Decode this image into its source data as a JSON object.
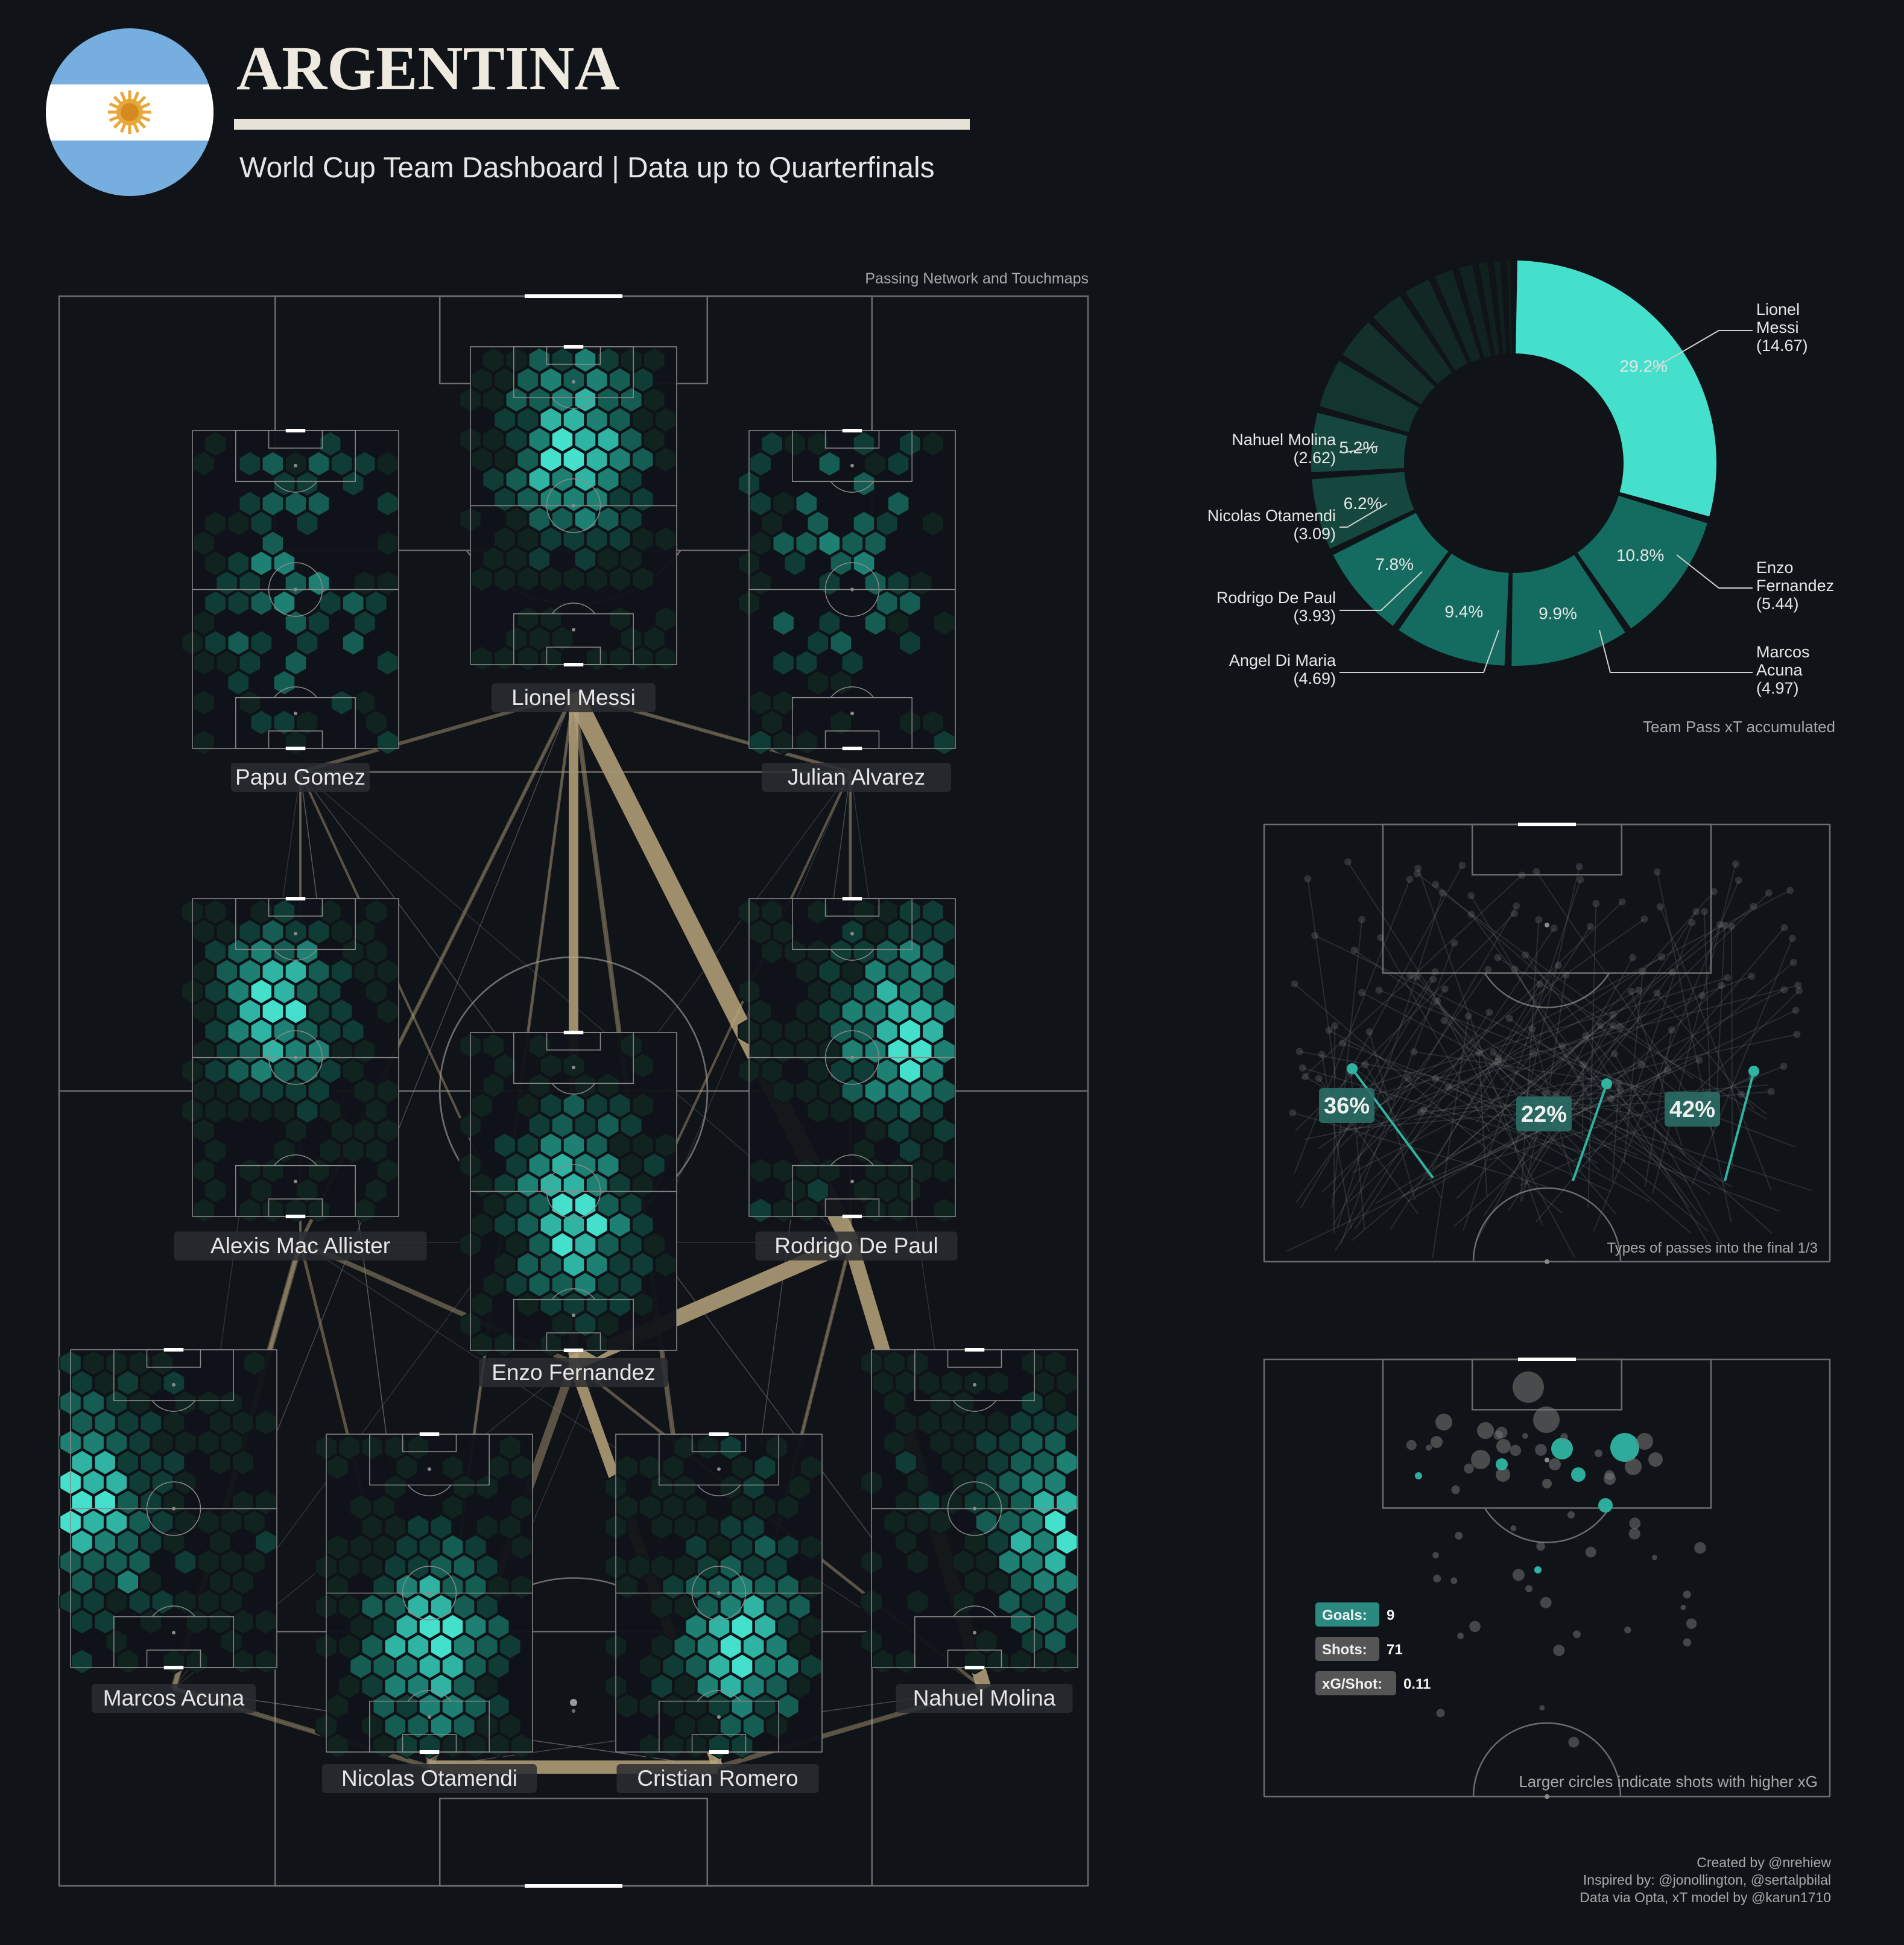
{
  "header": {
    "title": "ARGENTINA",
    "subtitle": "World Cup Team Dashboard | Data up to Quarterfinals",
    "flag_icon": "argentina-flag-icon"
  },
  "colors": {
    "background": "#101318",
    "teal": "#45e0cc",
    "teal_dark": "#146b5f",
    "teal_darker": "#0f3f38",
    "pass_line": "#b9a57a",
    "pitch_line": "#6c6c6c",
    "flag_blue": "#76aee0",
    "sun": "#e7a73b"
  },
  "network": {
    "caption": "Passing Network and Touchmaps",
    "players": [
      {
        "name": "Lionel Messi"
      },
      {
        "name": "Papu Gomez"
      },
      {
        "name": "Julian Alvarez"
      },
      {
        "name": "Alexis Mac Allister"
      },
      {
        "name": "Rodrigo De Paul"
      },
      {
        "name": "Enzo Fernandez"
      },
      {
        "name": "Marcos Acuna"
      },
      {
        "name": "Nahuel Molina"
      },
      {
        "name": "Nicolas Otamendi"
      },
      {
        "name": "Cristian Romero"
      }
    ]
  },
  "chart_data": [
    {
      "type": "pie",
      "caption": "Team Pass xT accumulated",
      "slices": [
        {
          "player": "Lionel Messi",
          "value": 14.67,
          "pct": "29.2%",
          "label": [
            "Lionel",
            "Messi",
            "(14.67)"
          ]
        },
        {
          "player": "Enzo Fernandez",
          "value": 5.44,
          "pct": "10.8%",
          "label": [
            "Enzo",
            "Fernandez",
            "(5.44)"
          ]
        },
        {
          "player": "Marcos Acuna",
          "value": 4.97,
          "pct": "9.9%",
          "label": [
            "Marcos",
            "Acuna",
            "(4.97)"
          ]
        },
        {
          "player": "Angel Di Maria",
          "value": 4.69,
          "pct": "9.4%",
          "label": [
            "Angel Di Maria",
            "(4.69)"
          ]
        },
        {
          "player": "Rodrigo De Paul",
          "value": 3.93,
          "pct": "7.8%",
          "label": [
            "Rodrigo De Paul",
            "(3.93)"
          ]
        },
        {
          "player": "Nicolas Otamendi",
          "value": 3.09,
          "pct": "6.2%",
          "label": [
            "Nicolas Otamendi",
            "(3.09)"
          ]
        },
        {
          "player": "Nahuel Molina",
          "value": 2.62,
          "pct": "5.2%",
          "label": [
            "Nahuel Molina",
            "(2.62)"
          ]
        },
        {
          "value": 2.2
        },
        {
          "value": 1.9
        },
        {
          "value": 1.6
        },
        {
          "value": 1.3
        },
        {
          "value": 1.0
        },
        {
          "value": 0.8
        },
        {
          "value": 0.6
        },
        {
          "value": 0.5
        },
        {
          "value": 0.4
        }
      ]
    },
    {
      "type": "table",
      "caption": "Types of passes into the final 1/3",
      "zones": [
        {
          "zone": "left",
          "pct": "36%"
        },
        {
          "zone": "center",
          "pct": "22%"
        },
        {
          "zone": "right",
          "pct": "42%"
        }
      ]
    },
    {
      "type": "scatter",
      "caption": "Larger circles indicate shots with higher xG",
      "stats": [
        {
          "label": "Goals:",
          "value": "9"
        },
        {
          "label": "Shots:",
          "value": "71"
        },
        {
          "label": "xG/Shot:",
          "value": "0.11"
        }
      ]
    }
  ],
  "credits": [
    "Created by @nrehiew",
    "Inspired by: @jonollington, @sertalpbilal",
    "Data via Opta, xT model by @karun1710"
  ]
}
